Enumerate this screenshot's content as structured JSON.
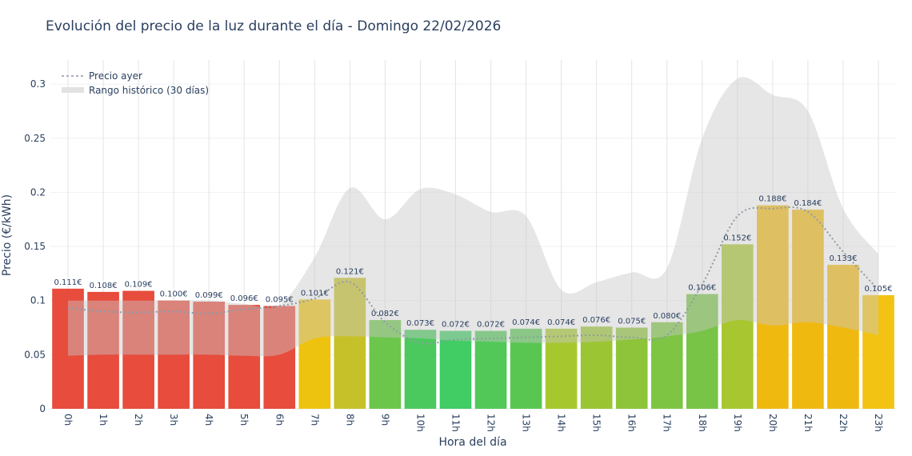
{
  "chart_data": {
    "type": "bar",
    "title": "Evolución del precio de la luz durante el día - Domingo 22/02/2026",
    "xlabel": "Hora del día",
    "ylabel": "Precio (€/kWh)",
    "ylim": [
      0,
      0.32
    ],
    "yticks": [
      0,
      0.05,
      0.1,
      0.15,
      0.2,
      0.25,
      0.3
    ],
    "ytick_labels": [
      "0",
      "0.05",
      "0.1",
      "0.15",
      "0.2",
      "0.25",
      "0.3"
    ],
    "grid": true,
    "legend_position": "top-left",
    "categories": [
      "0h",
      "1h",
      "2h",
      "3h",
      "4h",
      "5h",
      "6h",
      "7h",
      "8h",
      "9h",
      "10h",
      "11h",
      "12h",
      "13h",
      "14h",
      "15h",
      "16h",
      "17h",
      "18h",
      "19h",
      "20h",
      "21h",
      "22h",
      "23h"
    ],
    "values": [
      0.111,
      0.108,
      0.109,
      0.1,
      0.099,
      0.096,
      0.095,
      0.101,
      0.121,
      0.082,
      0.073,
      0.072,
      0.072,
      0.074,
      0.074,
      0.076,
      0.075,
      0.08,
      0.106,
      0.152,
      0.188,
      0.184,
      0.133,
      0.105
    ],
    "data_labels": [
      "0.111€",
      "0.108€",
      "0.109€",
      "0.100€",
      "0.099€",
      "0.096€",
      "0.095€",
      "0.101€",
      "0.121€",
      "0.082€",
      "0.073€",
      "0.072€",
      "0.072€",
      "0.074€",
      "0.074€",
      "0.076€",
      "0.075€",
      "0.080€",
      "0.106€",
      "0.152€",
      "0.188€",
      "0.184€",
      "0.133€",
      "0.105€"
    ],
    "bar_colors": [
      "#e74c3c",
      "#e74c3c",
      "#e74c3c",
      "#e74c3c",
      "#e74c3c",
      "#e74c3c",
      "#e74c3c",
      "#eec30f",
      "#c6c128",
      "#6cc64b",
      "#4cc95e",
      "#41cc64",
      "#52c858",
      "#5ac652",
      "#a6c82e",
      "#9cc534",
      "#8ec43a",
      "#7ec544",
      "#78c446",
      "#a8c630",
      "#f0b910",
      "#f0b910",
      "#f0b910",
      "#f2c313"
    ],
    "series": [
      {
        "name": "Precio ayer",
        "type": "line",
        "style": "dotted",
        "color": "#8f9aa6",
        "values": [
          0.093,
          0.09,
          0.089,
          0.09,
          0.088,
          0.092,
          0.095,
          0.102,
          0.117,
          0.08,
          0.061,
          0.064,
          0.065,
          0.066,
          0.067,
          0.068,
          0.066,
          0.068,
          0.115,
          0.178,
          0.185,
          0.182,
          0.145,
          0.11
        ]
      },
      {
        "name": "Rango histórico (30 días)",
        "type": "area-range",
        "color": "#d9d9d9",
        "upper": [
          0.1,
          0.1,
          0.1,
          0.1,
          0.1,
          0.097,
          0.096,
          0.14,
          0.204,
          0.175,
          0.203,
          0.198,
          0.182,
          0.178,
          0.11,
          0.117,
          0.126,
          0.13,
          0.25,
          0.305,
          0.29,
          0.275,
          0.185,
          0.143
        ],
        "lower": [
          0.049,
          0.05,
          0.05,
          0.05,
          0.05,
          0.049,
          0.05,
          0.065,
          0.067,
          0.066,
          0.065,
          0.063,
          0.062,
          0.061,
          0.061,
          0.062,
          0.064,
          0.067,
          0.072,
          0.082,
          0.077,
          0.08,
          0.075,
          0.068
        ]
      }
    ]
  }
}
